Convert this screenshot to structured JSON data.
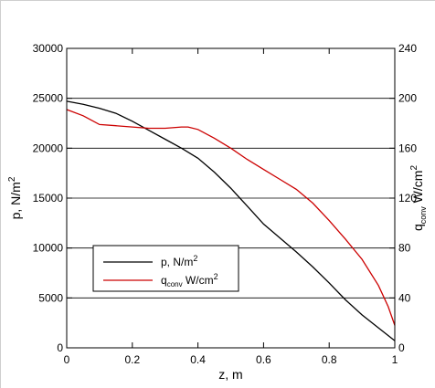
{
  "chart_data": {
    "type": "line",
    "xlabel": "z, m",
    "ylabel": {
      "main": "p, N/m",
      "sup": "2"
    },
    "y2label": {
      "q": "q",
      "sub": "conv",
      "unit": "W/cm",
      "sup": "2"
    },
    "xlim": [
      0,
      1
    ],
    "ylim": [
      0,
      30000
    ],
    "y2lim": [
      0,
      240
    ],
    "xticks": [
      0,
      0.2,
      0.4,
      0.6,
      0.8,
      1
    ],
    "xtick_labels": [
      "0",
      "0.2",
      "0.4",
      "0.6",
      "0.8",
      "1"
    ],
    "yticks": [
      0,
      5000,
      10000,
      15000,
      20000,
      25000,
      30000
    ],
    "ytick_labels": [
      "0",
      "5000",
      "10000",
      "15000",
      "20000",
      "25000",
      "30000"
    ],
    "y2ticks": [
      0,
      40,
      80,
      120,
      160,
      200,
      240
    ],
    "y2tick_labels": [
      "0",
      "40",
      "80",
      "120",
      "160",
      "200",
      "240"
    ],
    "grid": "horizontal",
    "legend_position": "lower-left",
    "series": [
      {
        "legend": {
          "main": "p, N/m",
          "sup": "2"
        },
        "color": "#000000",
        "axis": "left",
        "x": [
          0,
          0.05,
          0.1,
          0.15,
          0.2,
          0.25,
          0.3,
          0.35,
          0.4,
          0.45,
          0.5,
          0.55,
          0.6,
          0.65,
          0.7,
          0.75,
          0.8,
          0.85,
          0.9,
          0.95,
          1.0
        ],
        "y": [
          24700,
          24400,
          24000,
          23500,
          22700,
          21800,
          20900,
          20000,
          19000,
          17600,
          16000,
          14200,
          12400,
          11000,
          9600,
          8100,
          6500,
          4800,
          3300,
          2000,
          700
        ]
      },
      {
        "legend": {
          "main": "q",
          "sub": "conv",
          "unit": " W/cm",
          "sup": "2"
        },
        "color": "#cc0000",
        "axis": "right",
        "x": [
          0,
          0.05,
          0.1,
          0.15,
          0.2,
          0.25,
          0.3,
          0.35,
          0.37,
          0.4,
          0.45,
          0.5,
          0.55,
          0.6,
          0.65,
          0.7,
          0.75,
          0.8,
          0.85,
          0.9,
          0.95,
          0.98,
          1.0
        ],
        "y": [
          191,
          186,
          179,
          178,
          177,
          176,
          176,
          177,
          177,
          175,
          168,
          160,
          151,
          143,
          135,
          127,
          116,
          102,
          87,
          71,
          50,
          33,
          18
        ]
      }
    ]
  }
}
